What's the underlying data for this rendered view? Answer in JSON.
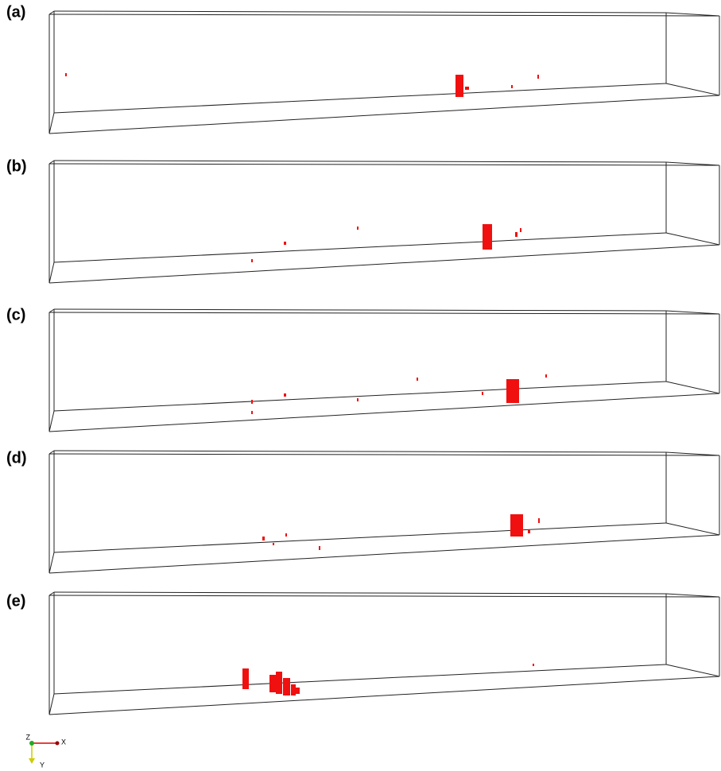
{
  "panels": [
    {
      "label": "(a)"
    },
    {
      "label": "(b)"
    },
    {
      "label": "(c)"
    },
    {
      "label": "(d)"
    },
    {
      "label": "(e)"
    }
  ],
  "axes": {
    "z": "Z",
    "x": "X",
    "y": "Y"
  }
}
